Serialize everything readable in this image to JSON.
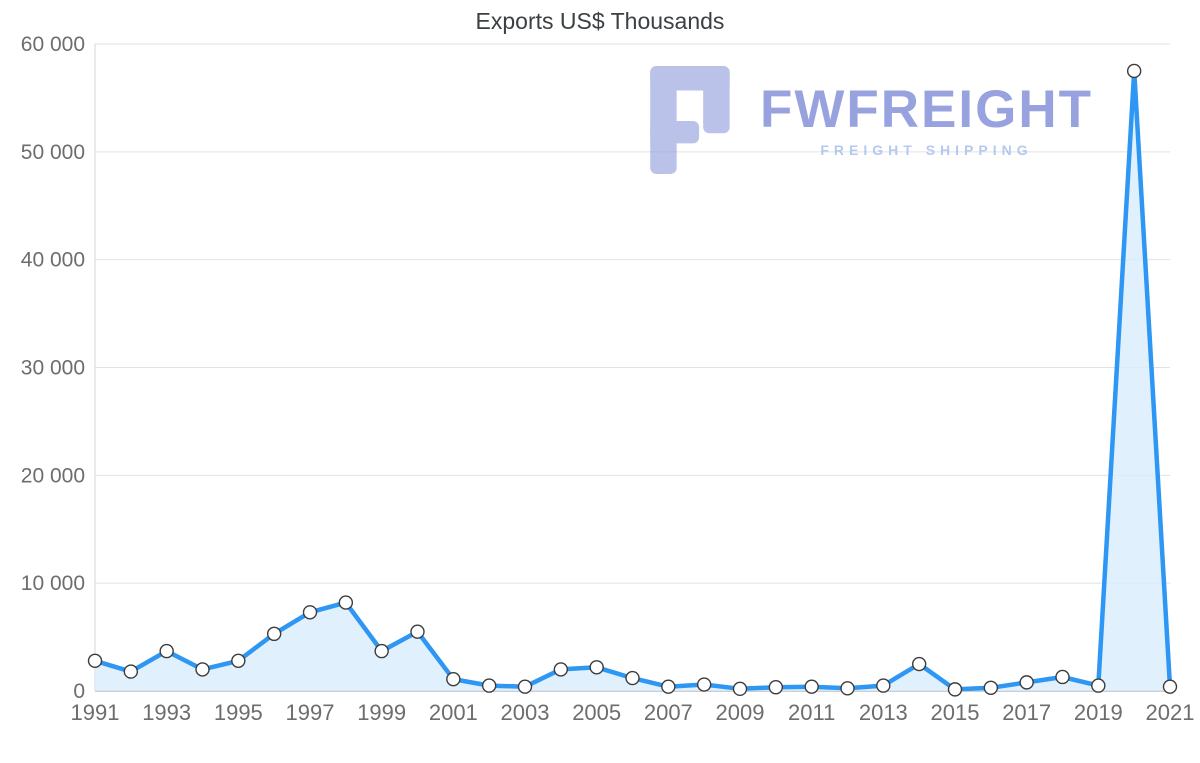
{
  "page": {
    "title": "Exports US$ Thousands"
  },
  "watermark": {
    "brand": "FWFREIGHT",
    "subtitle": "FREIGHT SHIPPING"
  },
  "chart_data": {
    "type": "area",
    "title": "Exports US$ Thousands",
    "x": [
      1991,
      1992,
      1993,
      1994,
      1995,
      1996,
      1997,
      1998,
      1999,
      2000,
      2001,
      2002,
      2003,
      2004,
      2005,
      2006,
      2007,
      2008,
      2009,
      2010,
      2011,
      2012,
      2013,
      2014,
      2015,
      2016,
      2017,
      2018,
      2019,
      2020,
      2021
    ],
    "series": [
      {
        "name": "Exports US$ Thousands",
        "values": [
          2800,
          1800,
          3700,
          2000,
          2800,
          5300,
          7300,
          8200,
          3700,
          5500,
          1100,
          500,
          400,
          2000,
          2200,
          1200,
          400,
          600,
          200,
          350,
          400,
          250,
          500,
          2500,
          150,
          300,
          800,
          1300,
          500,
          57500,
          400
        ]
      }
    ],
    "xlim": [
      1991,
      2021
    ],
    "ylim": [
      0,
      60000
    ],
    "xticks": [
      1991,
      1993,
      1995,
      1997,
      1999,
      2001,
      2003,
      2005,
      2007,
      2009,
      2011,
      2013,
      2015,
      2017,
      2019,
      2021
    ],
    "yticks": [
      0,
      10000,
      20000,
      30000,
      40000,
      50000,
      60000
    ],
    "ytick_labels": [
      "0",
      "10 000",
      "20 000",
      "30 000",
      "40 000",
      "50 000",
      "60 000"
    ],
    "grid": "horizontal",
    "legend": "none",
    "marker": "circle",
    "colors": {
      "line": "#2e96f3",
      "area": "#d9ecfd",
      "marker_fill": "#ffffff",
      "marker_stroke": "#3c3c3c",
      "grid": "#e2e2e2",
      "axis": "#9e9e9e",
      "left_axis": "#d6d6d6",
      "tick_label": "#6d6d6d",
      "title": "#3c4043",
      "watermark_text": "#7f8bd8",
      "watermark_subtitle": "#a3bdec",
      "watermark_logo": "#9aa6e0"
    }
  }
}
